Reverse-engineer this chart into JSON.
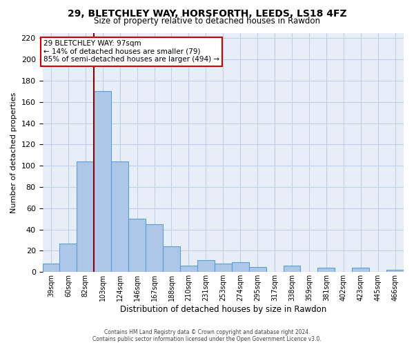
{
  "title": "29, BLETCHLEY WAY, HORSFORTH, LEEDS, LS18 4FZ",
  "subtitle": "Size of property relative to detached houses in Rawdon",
  "xlabel": "Distribution of detached houses by size in Rawdon",
  "ylabel": "Number of detached properties",
  "bar_labels": [
    "39sqm",
    "60sqm",
    "82sqm",
    "103sqm",
    "124sqm",
    "146sqm",
    "167sqm",
    "188sqm",
    "210sqm",
    "231sqm",
    "253sqm",
    "274sqm",
    "295sqm",
    "317sqm",
    "338sqm",
    "359sqm",
    "381sqm",
    "402sqm",
    "423sqm",
    "445sqm",
    "466sqm"
  ],
  "bar_values": [
    8,
    27,
    104,
    170,
    104,
    50,
    45,
    24,
    6,
    11,
    8,
    9,
    5,
    0,
    6,
    0,
    4,
    0,
    4,
    0,
    2
  ],
  "bar_color": "#aec6e8",
  "bar_edge_color": "#5a9fd4",
  "vline_x": 2.5,
  "vline_color": "#8b0000",
  "ylim": [
    0,
    225
  ],
  "yticks": [
    0,
    20,
    40,
    60,
    80,
    100,
    120,
    140,
    160,
    180,
    200,
    220
  ],
  "annotation_title": "29 BLETCHLEY WAY: 97sqm",
  "annotation_line1": "← 14% of detached houses are smaller (79)",
  "annotation_line2": "85% of semi-detached houses are larger (494) →",
  "annotation_box_color": "#ffffff",
  "annotation_box_edge": "#cc0000",
  "footer_line1": "Contains HM Land Registry data © Crown copyright and database right 2024.",
  "footer_line2": "Contains public sector information licensed under the Open Government Licence v3.0.",
  "grid_color": "#c0d0e8",
  "bg_color": "#e8eef8"
}
